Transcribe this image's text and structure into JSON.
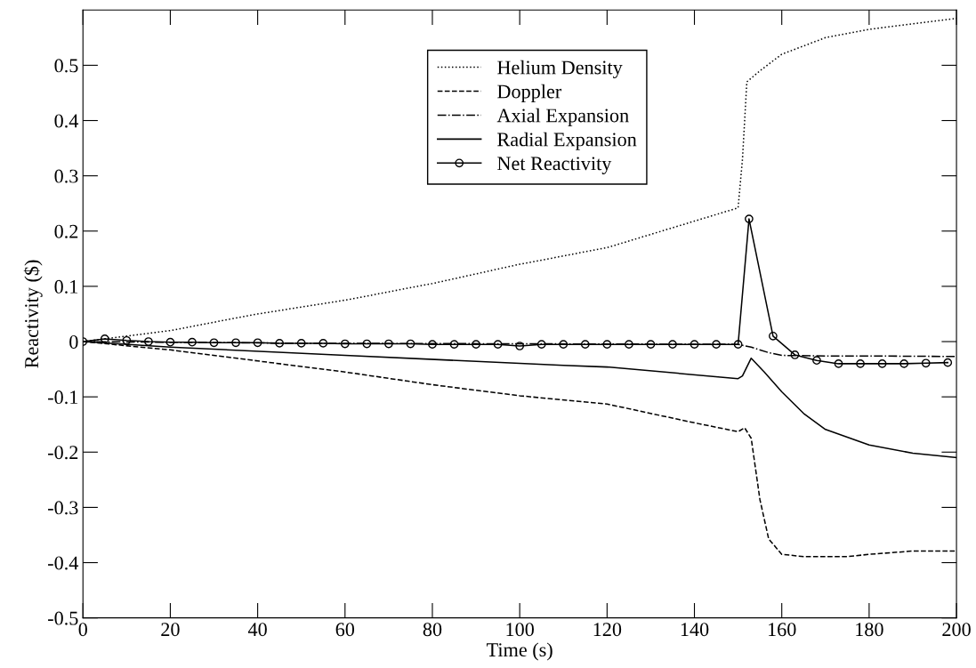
{
  "chart_data": {
    "type": "line",
    "xlabel": "Time (s)",
    "ylabel": "Reactivity ($)",
    "xlim": [
      0,
      200
    ],
    "xticks": [
      0,
      20,
      40,
      60,
      80,
      100,
      120,
      140,
      160,
      180,
      200
    ],
    "ylim": [
      -0.5,
      0.6
    ],
    "yticks": [
      -0.5,
      -0.4,
      -0.3,
      -0.2,
      -0.1,
      0,
      0.1,
      0.2,
      0.3,
      0.4,
      0.5
    ],
    "grid": false,
    "legend": "top",
    "marker": "none",
    "series": [
      {
        "name": "Helium Density",
        "color": "#000000",
        "line_style": "dotted",
        "x": [
          0,
          10,
          20,
          40,
          60,
          80,
          100,
          120,
          140,
          150,
          151,
          152,
          155,
          160,
          170,
          180,
          190,
          200
        ],
        "values": [
          0,
          0.01,
          0.02,
          0.05,
          0.075,
          0.105,
          0.14,
          0.17,
          0.218,
          0.242,
          0.33,
          0.47,
          0.49,
          0.52,
          0.55,
          0.565,
          0.575,
          0.585
        ]
      },
      {
        "name": "Doppler",
        "color": "#000000",
        "line_style": "dashed",
        "x": [
          0,
          20,
          40,
          60,
          80,
          100,
          120,
          140,
          150,
          151.5,
          153,
          155,
          157,
          160,
          165,
          175,
          180,
          190,
          200
        ],
        "values": [
          0,
          -0.015,
          -0.035,
          -0.055,
          -0.078,
          -0.098,
          -0.113,
          -0.147,
          -0.163,
          -0.156,
          -0.175,
          -0.286,
          -0.357,
          -0.385,
          -0.389,
          -0.389,
          -0.385,
          -0.379,
          -0.379
        ]
      },
      {
        "name": "Axial Expansion",
        "color": "#000000",
        "line_style": "dashdot",
        "x": [
          0,
          50,
          100,
          150,
          153,
          157,
          160,
          170,
          180,
          200
        ],
        "values": [
          0,
          -0.003,
          -0.004,
          -0.005,
          -0.01,
          -0.02,
          -0.025,
          -0.026,
          -0.026,
          -0.027
        ]
      },
      {
        "name": "Radial Expansion",
        "color": "#000000",
        "line_style": "solid",
        "x": [
          0,
          20,
          60,
          110,
          120,
          150,
          151,
          153,
          156,
          160,
          165,
          170,
          180,
          190,
          200
        ],
        "values": [
          0,
          -0.01,
          -0.025,
          -0.043,
          -0.046,
          -0.067,
          -0.062,
          -0.03,
          -0.055,
          -0.091,
          -0.13,
          -0.159,
          -0.187,
          -0.202,
          -0.21
        ]
      },
      {
        "name": "Net Reactivity",
        "color": "#000000",
        "line_style": "solid",
        "marker": "circle",
        "x": [
          0,
          5,
          10,
          15,
          20,
          25,
          30,
          35,
          40,
          45,
          50,
          55,
          60,
          65,
          70,
          75,
          80,
          85,
          90,
          95,
          100,
          105,
          110,
          115,
          120,
          125,
          130,
          135,
          140,
          145,
          150,
          152.5,
          158,
          163,
          168,
          173,
          178,
          183,
          188,
          193,
          198
        ],
        "values": [
          0,
          0.005,
          0.002,
          0,
          -0.001,
          -0.001,
          -0.002,
          -0.002,
          -0.002,
          -0.003,
          -0.003,
          -0.003,
          -0.004,
          -0.004,
          -0.004,
          -0.004,
          -0.005,
          -0.005,
          -0.005,
          -0.005,
          -0.008,
          -0.005,
          -0.005,
          -0.005,
          -0.005,
          -0.005,
          -0.005,
          -0.005,
          -0.005,
          -0.005,
          -0.005,
          0.222,
          0.01,
          -0.024,
          -0.034,
          -0.04,
          -0.04,
          -0.04,
          -0.04,
          -0.039,
          -0.038
        ]
      }
    ]
  }
}
